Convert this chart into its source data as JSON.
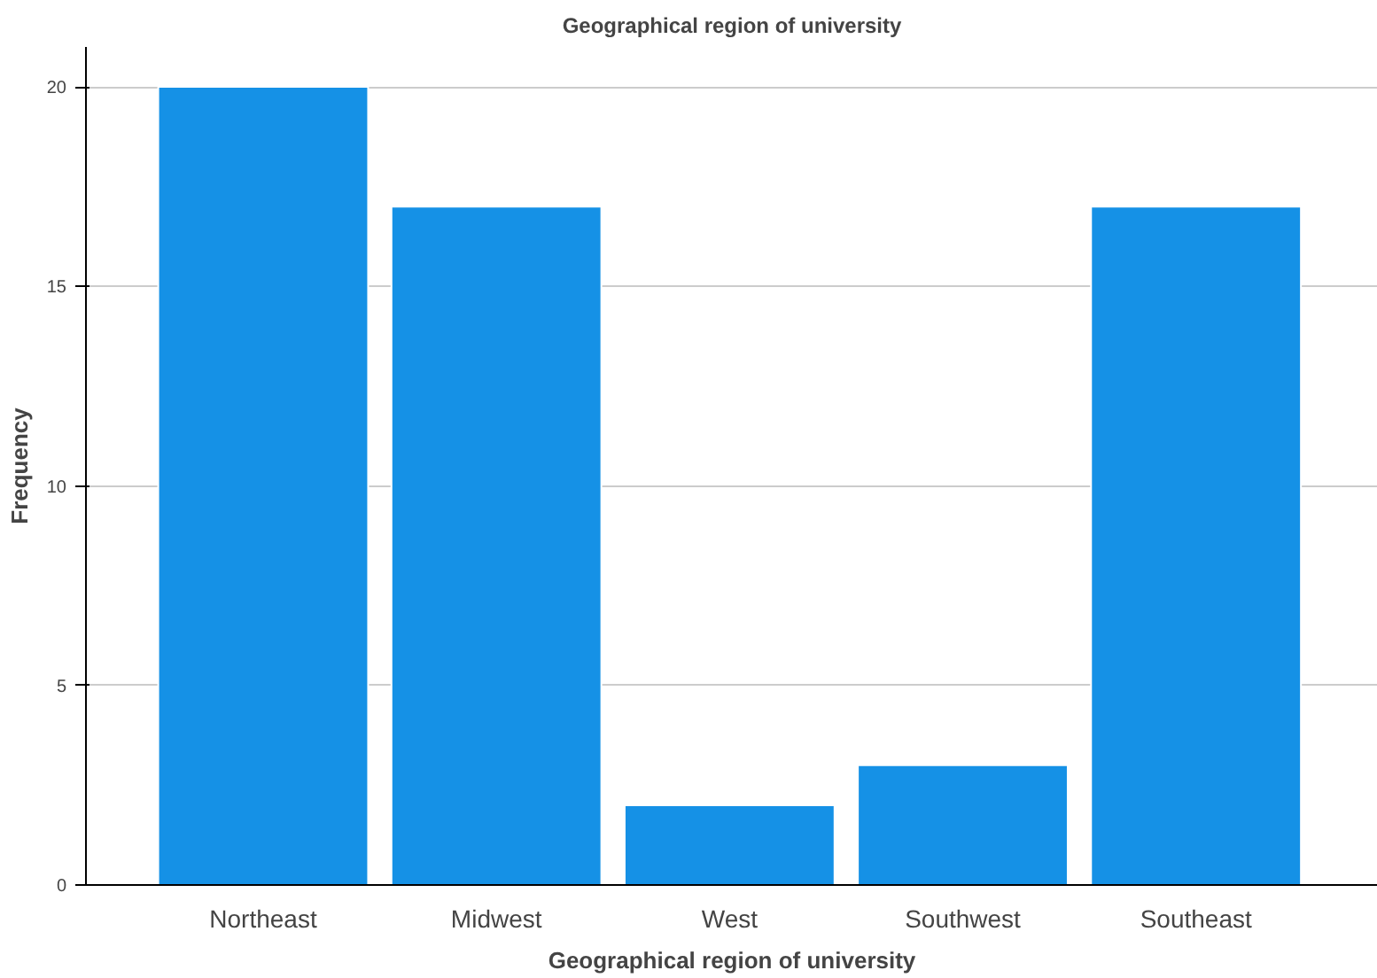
{
  "chart_data": {
    "type": "bar",
    "title": "Geographical region of university",
    "xlabel": "Geographical region of university",
    "ylabel": "Frequency",
    "categories": [
      "Northeast",
      "Midwest",
      "West",
      "Southwest",
      "Southeast"
    ],
    "values": [
      20,
      17,
      2,
      3,
      17
    ],
    "color": "#1591e6",
    "ylim": [
      0,
      21
    ],
    "yticks": [
      0,
      5,
      10,
      15,
      20
    ],
    "grid": "y"
  }
}
